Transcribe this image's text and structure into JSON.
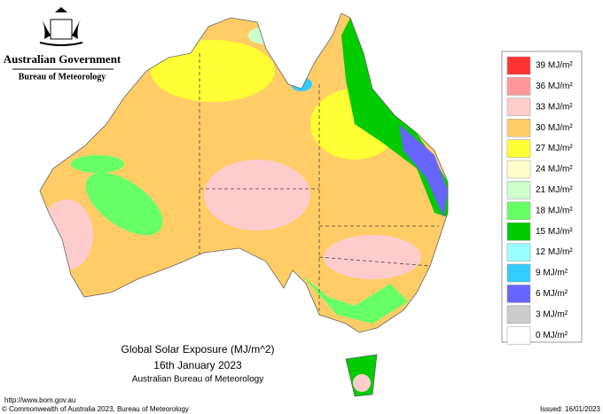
{
  "header": {
    "government": "Australian Government",
    "agency": "Bureau of Meteorology"
  },
  "legend": [
    {
      "label": "39 MJ/m²",
      "color": "#ff3333"
    },
    {
      "label": "36 MJ/m²",
      "color": "#ff9999"
    },
    {
      "label": "33 MJ/m²",
      "color": "#ffcccc"
    },
    {
      "label": "30 MJ/m²",
      "color": "#ffcc66"
    },
    {
      "label": "27 MJ/m²",
      "color": "#ffff33"
    },
    {
      "label": "24 MJ/m²",
      "color": "#ffffcc"
    },
    {
      "label": "21 MJ/m²",
      "color": "#ccffcc"
    },
    {
      "label": "18 MJ/m²",
      "color": "#66ff66"
    },
    {
      "label": "15 MJ/m²",
      "color": "#00cc00"
    },
    {
      "label": "12 MJ/m²",
      "color": "#99ffff"
    },
    {
      "label": "9 MJ/m²",
      "color": "#33ccff"
    },
    {
      "label": "6 MJ/m²",
      "color": "#6666ff"
    },
    {
      "label": "3 MJ/m²",
      "color": "#cccccc"
    },
    {
      "label": "0 MJ/m²",
      "color": null
    }
  ],
  "title": {
    "line1": "Global Solar Exposure (MJ/m^2)",
    "line2": "16th January 2023",
    "line3": "Australian Bureau of Meteorology"
  },
  "footer": {
    "url": "http://www.bom.gov.au",
    "copyright": "© Commonwealth of Australia 2023, Bureau of Meteorology",
    "issued": "Issued: 16/01/2023"
  }
}
